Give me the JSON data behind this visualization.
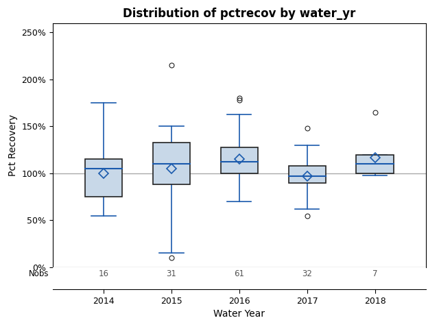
{
  "title": "Distribution of pctrecov by water_yr",
  "xlabel": "Water Year",
  "ylabel": "Pct Recovery",
  "years": [
    2014,
    2015,
    2016,
    2017,
    2018
  ],
  "nobs": [
    16,
    31,
    61,
    32,
    7
  ],
  "boxes": [
    {
      "q1": 75,
      "median": 105,
      "q3": 115,
      "whislo": 55,
      "whishi": 175,
      "mean": 100,
      "fliers": []
    },
    {
      "q1": 88,
      "median": 110,
      "q3": 133,
      "whislo": 15,
      "whishi": 150,
      "mean": 105,
      "fliers": [
        215,
        10
      ]
    },
    {
      "q1": 100,
      "median": 112,
      "q3": 128,
      "whislo": 70,
      "whishi": 163,
      "mean": 115,
      "fliers": [
        178,
        180
      ]
    },
    {
      "q1": 90,
      "median": 97,
      "q3": 108,
      "whislo": 62,
      "whishi": 130,
      "mean": 97,
      "fliers": [
        148,
        55
      ]
    },
    {
      "q1": 100,
      "median": 110,
      "q3": 120,
      "whislo": 98,
      "whishi": 120,
      "mean": 117,
      "fliers": [
        165
      ]
    }
  ],
  "box_facecolor": "#c8d8e8",
  "box_edgecolor": "#222222",
  "whisker_color": "#1a5aad",
  "median_color": "#1a5aad",
  "mean_marker_color": "#1a5aad",
  "outlier_color": "#222222",
  "reference_line_y": 100,
  "reference_line_color": "#aaaaaa",
  "ylim": [
    0,
    260
  ],
  "yticks": [
    0,
    50,
    100,
    150,
    200,
    250
  ],
  "yticklabels": [
    "0%",
    "50%",
    "100%",
    "150%",
    "200%",
    "250%"
  ],
  "background_color": "#ffffff",
  "plot_area_color": "#ffffff",
  "title_fontsize": 12,
  "axis_label_fontsize": 10,
  "tick_fontsize": 9,
  "nobs_fontsize": 8.5,
  "box_width": 0.55
}
